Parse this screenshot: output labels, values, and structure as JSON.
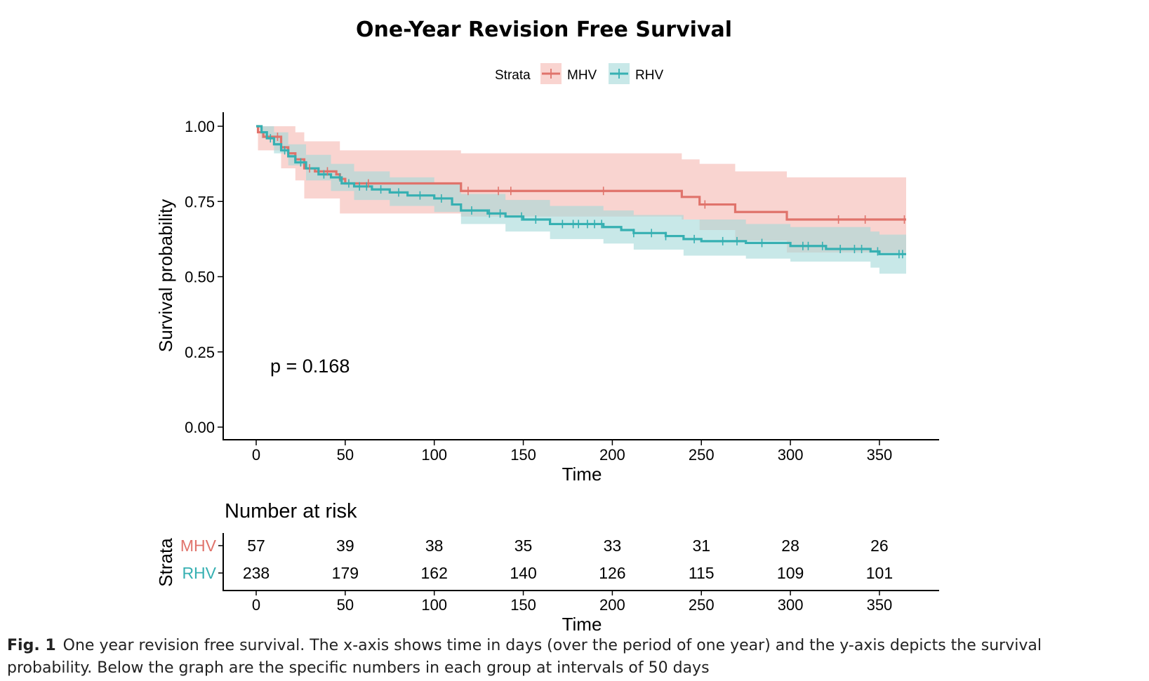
{
  "chart_data": {
    "type": "line",
    "title": "One-Year Revision Free Survival",
    "legend": {
      "title": "Strata",
      "placement": "top"
    },
    "xlabel": "Time",
    "ylabel": "Survival probability",
    "xlim": [
      0,
      365
    ],
    "ylim": [
      0,
      1
    ],
    "xticks": [
      0,
      50,
      100,
      150,
      200,
      250,
      300,
      350
    ],
    "yticks": [
      "0.00",
      "0.25",
      "0.50",
      "0.75",
      "1.00"
    ],
    "annotation": "p = 0.168",
    "series": [
      {
        "name": "MHV",
        "color": "#E0736B",
        "band_color": "#F5B7B1",
        "steps": [
          [
            0,
            1.0
          ],
          [
            1,
            0.98
          ],
          [
            4,
            0.965
          ],
          [
            14,
            0.93
          ],
          [
            18,
            0.91
          ],
          [
            22,
            0.89
          ],
          [
            27,
            0.86
          ],
          [
            33,
            0.85
          ],
          [
            45,
            0.84
          ],
          [
            47,
            0.825
          ],
          [
            50,
            0.81
          ],
          [
            115,
            0.785
          ],
          [
            239,
            0.765
          ],
          [
            249,
            0.74
          ],
          [
            269,
            0.715
          ],
          [
            298,
            0.69
          ],
          [
            365,
            0.69
          ]
        ],
        "lower": [
          [
            0,
            1.0
          ],
          [
            1,
            0.92
          ],
          [
            14,
            0.86
          ],
          [
            22,
            0.82
          ],
          [
            27,
            0.76
          ],
          [
            47,
            0.71
          ],
          [
            115,
            0.7
          ],
          [
            239,
            0.69
          ],
          [
            249,
            0.655
          ],
          [
            269,
            0.62
          ],
          [
            298,
            0.58
          ],
          [
            365,
            0.58
          ]
        ],
        "upper": [
          [
            0,
            1.0
          ],
          [
            1,
            1.0
          ],
          [
            22,
            0.98
          ],
          [
            27,
            0.95
          ],
          [
            47,
            0.92
          ],
          [
            115,
            0.91
          ],
          [
            239,
            0.89
          ],
          [
            249,
            0.875
          ],
          [
            269,
            0.85
          ],
          [
            298,
            0.83
          ],
          [
            365,
            0.83
          ]
        ],
        "censor": [
          12,
          30,
          40,
          63,
          119,
          136,
          143,
          195,
          252,
          327,
          342,
          364
        ]
      },
      {
        "name": "RHV",
        "color": "#36B0B2",
        "band_color": "#A3D9D9",
        "steps": [
          [
            0,
            1.0
          ],
          [
            3,
            0.98
          ],
          [
            6,
            0.96
          ],
          [
            10,
            0.94
          ],
          [
            14,
            0.92
          ],
          [
            18,
            0.9
          ],
          [
            22,
            0.88
          ],
          [
            28,
            0.86
          ],
          [
            35,
            0.84
          ],
          [
            42,
            0.83
          ],
          [
            48,
            0.81
          ],
          [
            55,
            0.8
          ],
          [
            65,
            0.79
          ],
          [
            75,
            0.78
          ],
          [
            85,
            0.77
          ],
          [
            100,
            0.76
          ],
          [
            110,
            0.74
          ],
          [
            115,
            0.72
          ],
          [
            130,
            0.71
          ],
          [
            140,
            0.7
          ],
          [
            150,
            0.69
          ],
          [
            165,
            0.675
          ],
          [
            195,
            0.665
          ],
          [
            205,
            0.655
          ],
          [
            212,
            0.645
          ],
          [
            230,
            0.635
          ],
          [
            240,
            0.625
          ],
          [
            250,
            0.618
          ],
          [
            275,
            0.612
          ],
          [
            300,
            0.602
          ],
          [
            320,
            0.592
          ],
          [
            345,
            0.584
          ],
          [
            350,
            0.575
          ],
          [
            365,
            0.575
          ]
        ],
        "lower": [
          [
            0,
            1.0
          ],
          [
            3,
            0.96
          ],
          [
            10,
            0.91
          ],
          [
            18,
            0.87
          ],
          [
            28,
            0.82
          ],
          [
            42,
            0.785
          ],
          [
            55,
            0.755
          ],
          [
            75,
            0.735
          ],
          [
            100,
            0.715
          ],
          [
            115,
            0.675
          ],
          [
            140,
            0.65
          ],
          [
            165,
            0.625
          ],
          [
            195,
            0.61
          ],
          [
            212,
            0.59
          ],
          [
            240,
            0.57
          ],
          [
            275,
            0.56
          ],
          [
            300,
            0.55
          ],
          [
            345,
            0.53
          ],
          [
            350,
            0.51
          ],
          [
            365,
            0.51
          ]
        ],
        "upper": [
          [
            0,
            1.0
          ],
          [
            3,
            1.0
          ],
          [
            10,
            0.98
          ],
          [
            18,
            0.94
          ],
          [
            28,
            0.905
          ],
          [
            42,
            0.875
          ],
          [
            55,
            0.85
          ],
          [
            75,
            0.83
          ],
          [
            100,
            0.81
          ],
          [
            115,
            0.775
          ],
          [
            140,
            0.755
          ],
          [
            165,
            0.735
          ],
          [
            195,
            0.72
          ],
          [
            212,
            0.705
          ],
          [
            240,
            0.69
          ],
          [
            275,
            0.675
          ],
          [
            300,
            0.665
          ],
          [
            345,
            0.65
          ],
          [
            350,
            0.64
          ],
          [
            365,
            0.64
          ]
        ],
        "censor": [
          8,
          16,
          25,
          38,
          47,
          52,
          58,
          62,
          70,
          80,
          92,
          104,
          121,
          131,
          137,
          149,
          157,
          172,
          178,
          181,
          186,
          190,
          194,
          212,
          222,
          230,
          246,
          262,
          270,
          284,
          307,
          310,
          318,
          328,
          336,
          340,
          349,
          361,
          363
        ]
      }
    ],
    "risk_table": {
      "title": "Number at risk",
      "ylabel": "Strata",
      "xlabel": "Time",
      "times": [
        0,
        50,
        100,
        150,
        200,
        250,
        300,
        350
      ],
      "rows": [
        {
          "name": "MHV",
          "color": "#E0736B",
          "values": [
            "57",
            "39",
            "38",
            "35",
            "33",
            "31",
            "28",
            "26"
          ]
        },
        {
          "name": "RHV",
          "color": "#36B0B2",
          "values": [
            "238",
            "179",
            "162",
            "140",
            "126",
            "115",
            "109",
            "101"
          ]
        }
      ]
    }
  },
  "caption": {
    "label": "Fig. 1",
    "text": "One year revision free survival. The x-axis shows time in days (over the period of one year) and the y-axis depicts the survival probability. Below the graph are the specific numbers in each group at intervals of 50 days"
  }
}
